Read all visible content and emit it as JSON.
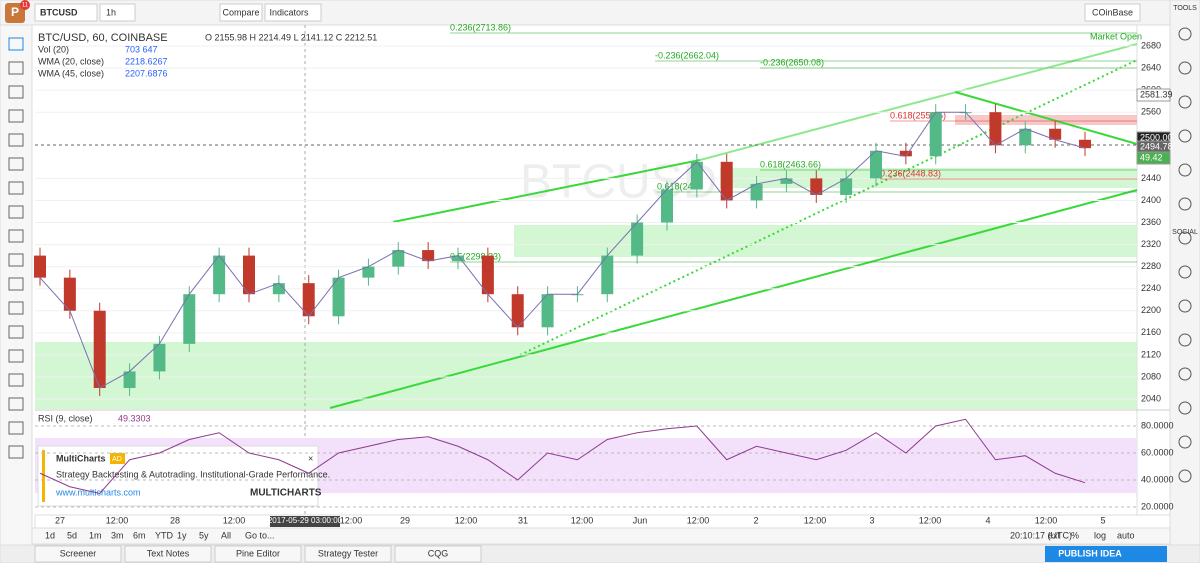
{
  "toolbar": {
    "symbol": "BTCUSD",
    "interval": "1h",
    "buttons": [
      "Compare",
      "Indicators"
    ],
    "account": "COinBase",
    "badge": "11"
  },
  "legend": {
    "title": "BTC/USD, 60, COINBASE",
    "ohlc": "O 2155.98 H 2214.49 L 2141.12 C 2212.51",
    "indicators": [
      {
        "name": "Vol (20)",
        "value": "703 647"
      },
      {
        "name": "WMA (20, close)",
        "value": "2218.6267"
      },
      {
        "name": "WMA (45, close)",
        "value": "2207.6876"
      }
    ]
  },
  "watermark": "BTCUSD",
  "market_status": "Market Open",
  "fib_labels": [
    "0.236(2713.86)",
    "-0.236(2662.04)",
    "-0.236(2650.08)",
    "0.618(2552.5)",
    "0.618(2463.66)",
    "0.236(2448.83)",
    "0.618(2424",
    "0.5(2298.23)"
  ],
  "price_ticks": [
    2680,
    2640,
    2600,
    2560,
    2440,
    2400,
    2360,
    2320,
    2280,
    2240,
    2200,
    2160,
    2120,
    2080,
    2040
  ],
  "price_markers": [
    "2581.39",
    "2500.00",
    "2494.78",
    "49.42"
  ],
  "rsi": {
    "title": "RSI (9, close)",
    "value": "49.3303",
    "ticks": [
      "80.0000",
      "60.0000",
      "40.0000",
      "20.0000"
    ]
  },
  "time_axis": [
    "27",
    "12:00",
    "28",
    "12:00",
    "2017-05-29 03:00:00",
    "12:00",
    "29",
    "12:00",
    "31",
    "12:00",
    "Jun",
    "12:00",
    "2",
    "12:00",
    "3",
    "12:00",
    "4",
    "12:00",
    "5"
  ],
  "ad": {
    "brand": "MultiCharts",
    "tag": "AD",
    "text": "Strategy Backtesting & Autotrading. Institutional-Grade Performance.",
    "url": "www.multicharts.com",
    "logo": "MULTICHARTS"
  },
  "ranges": [
    "1d",
    "5d",
    "1m",
    "3m",
    "6m",
    "YTD",
    "1y",
    "5y",
    "All",
    "Go to..."
  ],
  "clock": "20:10:17 (UTC)",
  "scale_options": [
    "ext",
    "%",
    "log",
    "auto"
  ],
  "tabs": [
    "Screener",
    "Text Notes",
    "Pine Editor",
    "Strategy Tester",
    "CQG"
  ],
  "publish": "PUBLISH IDEA",
  "sidebar": [
    "TOOLS",
    "SOCIAL"
  ],
  "closes": [
    2260,
    2200,
    2060,
    2090,
    2140,
    2230,
    2300,
    2230,
    2250,
    2190,
    2260,
    2280,
    2310,
    2290,
    2300,
    2230,
    2170,
    2230,
    2230,
    2300,
    2360,
    2420,
    2470,
    2400,
    2430,
    2440,
    2410,
    2440,
    2490,
    2480,
    2560,
    2560,
    2500,
    2530,
    2510,
    2494.78
  ],
  "rsi_values": [
    45,
    35,
    30,
    55,
    60,
    70,
    75,
    60,
    55,
    45,
    60,
    65,
    70,
    72,
    65,
    55,
    40,
    60,
    55,
    70,
    75,
    78,
    80,
    55,
    65,
    60,
    55,
    62,
    75,
    60,
    80,
    85,
    55,
    58,
    45,
    38
  ]
}
